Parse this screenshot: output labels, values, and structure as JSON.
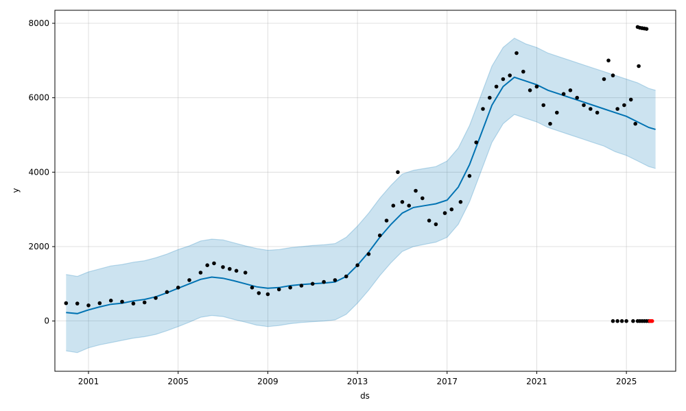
{
  "chart_data": {
    "type": "line",
    "xlabel": "ds",
    "ylabel": "y",
    "grid": true,
    "xlim": [
      1999.5,
      2027.2
    ],
    "ylim": [
      -1350,
      8350
    ],
    "x_ticks": [
      2001,
      2005,
      2009,
      2013,
      2017,
      2021,
      2025
    ],
    "y_ticks": [
      0,
      2000,
      4000,
      6000,
      8000
    ],
    "colors": {
      "forecast": "#0072B2",
      "interval": "#0072B2",
      "observed": "#000000",
      "highlight": "#ff0000"
    },
    "forecast": {
      "name": "yhat",
      "x": [
        2000.0,
        2000.5,
        2001.0,
        2001.5,
        2002.0,
        2002.5,
        2003.0,
        2003.5,
        2004.0,
        2004.5,
        2005.0,
        2005.5,
        2006.0,
        2006.5,
        2007.0,
        2007.5,
        2008.0,
        2008.5,
        2009.0,
        2009.5,
        2010.0,
        2010.5,
        2011.0,
        2011.5,
        2012.0,
        2012.5,
        2013.0,
        2013.5,
        2014.0,
        2014.5,
        2015.0,
        2015.5,
        2016.0,
        2016.5,
        2017.0,
        2017.5,
        2018.0,
        2018.5,
        2019.0,
        2019.5,
        2020.0,
        2020.5,
        2021.0,
        2021.5,
        2022.0,
        2022.5,
        2023.0,
        2023.5,
        2024.0,
        2024.5,
        2025.0,
        2025.5,
        2026.0,
        2026.3
      ],
      "y": [
        230,
        200,
        300,
        380,
        450,
        480,
        540,
        580,
        650,
        760,
        880,
        1000,
        1120,
        1180,
        1150,
        1080,
        1000,
        920,
        880,
        900,
        950,
        980,
        1000,
        1020,
        1050,
        1200,
        1500,
        1850,
        2250,
        2600,
        2900,
        3050,
        3100,
        3150,
        3250,
        3600,
        4200,
        5000,
        5800,
        6300,
        6550,
        6450,
        6350,
        6200,
        6100,
        6000,
        5900,
        5800,
        5700,
        5600,
        5500,
        5350,
        5200,
        5150
      ],
      "upper": [
        1250,
        1200,
        1320,
        1400,
        1480,
        1520,
        1580,
        1620,
        1700,
        1800,
        1920,
        2020,
        2150,
        2200,
        2180,
        2100,
        2020,
        1950,
        1900,
        1920,
        1970,
        2000,
        2030,
        2050,
        2080,
        2250,
        2550,
        2900,
        3300,
        3650,
        3950,
        4050,
        4100,
        4150,
        4300,
        4650,
        5250,
        6050,
        6850,
        7350,
        7600,
        7450,
        7350,
        7200,
        7100,
        7000,
        6900,
        6800,
        6700,
        6600,
        6500,
        6400,
        6250,
        6200
      ],
      "lower": [
        -800,
        -850,
        -720,
        -640,
        -580,
        -520,
        -460,
        -420,
        -360,
        -260,
        -150,
        -30,
        100,
        150,
        120,
        40,
        -30,
        -110,
        -150,
        -120,
        -70,
        -40,
        -20,
        0,
        30,
        180,
        480,
        830,
        1220,
        1570,
        1870,
        2000,
        2060,
        2120,
        2250,
        2600,
        3200,
        4000,
        4800,
        5300,
        5550,
        5450,
        5350,
        5200,
        5100,
        5000,
        4900,
        4800,
        4700,
        4550,
        4450,
        4300,
        4150,
        4100
      ]
    },
    "observed": {
      "name": "y",
      "x": [
        2000.0,
        2000.5,
        2001.0,
        2001.5,
        2002.0,
        2002.5,
        2003.0,
        2003.5,
        2004.0,
        2004.5,
        2005.0,
        2005.5,
        2006.0,
        2006.3,
        2006.6,
        2007.0,
        2007.3,
        2007.6,
        2008.0,
        2008.3,
        2008.6,
        2009.0,
        2009.5,
        2010.0,
        2010.5,
        2011.0,
        2011.5,
        2012.0,
        2012.5,
        2013.0,
        2013.5,
        2014.0,
        2014.3,
        2014.6,
        2014.8,
        2015.0,
        2015.3,
        2015.6,
        2015.9,
        2016.2,
        2016.5,
        2016.9,
        2017.2,
        2017.6,
        2018.0,
        2018.3,
        2018.6,
        2018.9,
        2019.2,
        2019.5,
        2019.8,
        2020.1,
        2020.4,
        2020.7,
        2021.0,
        2021.3,
        2021.6,
        2021.9,
        2022.2,
        2022.5,
        2022.8,
        2023.1,
        2023.4,
        2023.7,
        2024.0,
        2024.2,
        2024.4,
        2024.6,
        2024.9,
        2025.2,
        2025.4
      ],
      "y": [
        480,
        470,
        420,
        480,
        550,
        520,
        470,
        500,
        620,
        780,
        900,
        1100,
        1300,
        1500,
        1550,
        1450,
        1400,
        1350,
        1300,
        900,
        750,
        720,
        850,
        900,
        950,
        1000,
        1050,
        1100,
        1200,
        1500,
        1800,
        2300,
        2700,
        3100,
        4000,
        3200,
        3100,
        3500,
        3300,
        2700,
        2600,
        2900,
        3000,
        3200,
        3900,
        4800,
        5700,
        6000,
        6300,
        6500,
        6600,
        7200,
        6700,
        6200,
        6300,
        5800,
        5300,
        5600,
        6100,
        6200,
        6000,
        5800,
        5700,
        5600,
        6500,
        7000,
        6600,
        5700,
        5800,
        5950,
        5300
      ],
      "late_zero_x": [
        2024.4,
        2024.6,
        2024.8,
        2025.0,
        2025.3,
        2025.5,
        2025.6,
        2025.7,
        2025.8,
        2025.9,
        2026.0
      ],
      "late_zero_y": [
        0,
        0,
        0,
        0,
        0,
        0,
        0,
        0,
        0,
        0,
        0
      ],
      "late_high_x": [
        2025.5,
        2025.6,
        2025.7,
        2025.8,
        2025.9,
        2025.55
      ],
      "late_high_y": [
        7900,
        7880,
        7870,
        7860,
        7850,
        6850
      ],
      "highlight_x": [
        2026.05,
        2026.1,
        2026.15
      ],
      "highlight_y": [
        0,
        0,
        0
      ]
    }
  }
}
